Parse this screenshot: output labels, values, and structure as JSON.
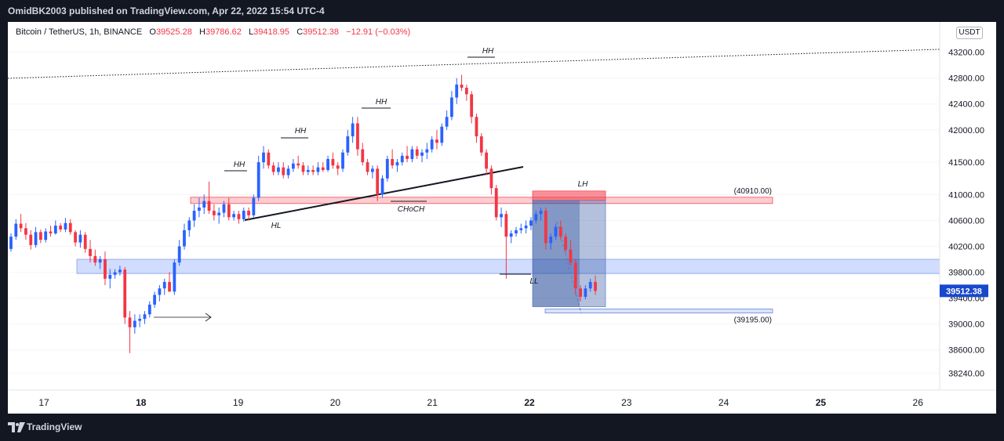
{
  "header": {
    "publisher": "OmidBK2003 published on TradingView.com, Apr 22, 2022 15:54 UTC-4"
  },
  "legend": {
    "symbol": "Bitcoin / TetherUS, 1h, BINANCE",
    "o_key": "O",
    "o_val": "39525.28",
    "h_key": "H",
    "h_val": "39786.62",
    "l_key": "L",
    "l_val": "39418.95",
    "c_key": "C",
    "c_val": "39512.38",
    "change": "−12.91 (−0.03%)"
  },
  "currency": "USDT",
  "footer": {
    "brand": "TradingView"
  },
  "colors": {
    "up": "#2962ff",
    "down": "#f23645",
    "background": "#ffffff",
    "frame": "#131722"
  },
  "chart_data": {
    "type": "candlestick",
    "symbol": "Bitcoin / TetherUS",
    "interval": "1h",
    "exchange": "BINANCE",
    "y_ticks": [
      43200,
      42800,
      42400,
      42000,
      41500,
      41000,
      40600,
      40200,
      39800,
      39400,
      39000,
      38600,
      38240
    ],
    "ylim": [
      38100,
      43450
    ],
    "x_ticks": [
      "17",
      "18",
      "19",
      "20",
      "21",
      "22",
      "23",
      "24",
      "25",
      "26"
    ],
    "last_price": "39512.38",
    "price_labels": [
      "(40910.00)",
      "(39195.00)"
    ],
    "annotations": [
      "HH",
      "HH",
      "HH",
      "HH",
      "HL",
      "CHoCH",
      "LH",
      "LL"
    ],
    "candles": [
      [
        40160,
        40400,
        40120,
        40350
      ],
      [
        40350,
        40620,
        40300,
        40550
      ],
      [
        40550,
        40700,
        40420,
        40480
      ],
      [
        40480,
        40560,
        40300,
        40380
      ],
      [
        40380,
        40450,
        40150,
        40220
      ],
      [
        40220,
        40500,
        40180,
        40420
      ],
      [
        40420,
        40460,
        40250,
        40300
      ],
      [
        40300,
        40480,
        40260,
        40430
      ],
      [
        40430,
        40520,
        40350,
        40400
      ],
      [
        40400,
        40600,
        40380,
        40520
      ],
      [
        40520,
        40560,
        40420,
        40460
      ],
      [
        40460,
        40640,
        40420,
        40560
      ],
      [
        40560,
        40620,
        40380,
        40420
      ],
      [
        40420,
        40450,
        40200,
        40260
      ],
      [
        40260,
        40450,
        40180,
        40380
      ],
      [
        40380,
        40420,
        40100,
        40160
      ],
      [
        40160,
        40300,
        39950,
        40050
      ],
      [
        40050,
        40150,
        39900,
        39950
      ],
      [
        39950,
        40050,
        39850,
        40000
      ],
      [
        40000,
        40120,
        39600,
        39700
      ],
      [
        39700,
        39850,
        39550,
        39760
      ],
      [
        39760,
        39850,
        39700,
        39800
      ],
      [
        39800,
        39900,
        39750,
        39840
      ],
      [
        39840,
        39880,
        39000,
        39100
      ],
      [
        39100,
        39200,
        38550,
        38950
      ],
      [
        38950,
        39150,
        38850,
        39050
      ],
      [
        39050,
        39150,
        38950,
        39080
      ],
      [
        39080,
        39200,
        39000,
        39150
      ],
      [
        39150,
        39350,
        39100,
        39300
      ],
      [
        39300,
        39500,
        39250,
        39450
      ],
      [
        39450,
        39600,
        39350,
        39550
      ],
      [
        39550,
        39700,
        39450,
        39650
      ],
      [
        39650,
        39800,
        39550,
        39500
      ],
      [
        39500,
        40000,
        39450,
        39950
      ],
      [
        39950,
        40300,
        39900,
        40200
      ],
      [
        40200,
        40550,
        40150,
        40450
      ],
      [
        40450,
        40650,
        40350,
        40600
      ],
      [
        40600,
        40850,
        40500,
        40750
      ],
      [
        40750,
        40950,
        40650,
        40800
      ],
      [
        40800,
        41000,
        40700,
        40900
      ],
      [
        40900,
        41200,
        40700,
        40750
      ],
      [
        40750,
        40850,
        40600,
        40680
      ],
      [
        40680,
        40800,
        40550,
        40720
      ],
      [
        40720,
        40900,
        40650,
        40850
      ],
      [
        40850,
        40950,
        40600,
        40650
      ],
      [
        40650,
        40750,
        40600,
        40700
      ],
      [
        40700,
        40750,
        40550,
        40620
      ],
      [
        40620,
        40800,
        40580,
        40750
      ],
      [
        40750,
        40800,
        40600,
        40680
      ],
      [
        40680,
        41000,
        40650,
        40950
      ],
      [
        40950,
        41600,
        40900,
        41500
      ],
      [
        41500,
        41750,
        41400,
        41650
      ],
      [
        41650,
        41700,
        41400,
        41450
      ],
      [
        41450,
        41500,
        41300,
        41350
      ],
      [
        41350,
        41500,
        41300,
        41420
      ],
      [
        41420,
        41500,
        41250,
        41300
      ],
      [
        41300,
        41450,
        41250,
        41400
      ],
      [
        41400,
        41550,
        41350,
        41480
      ],
      [
        41480,
        41600,
        41400,
        41450
      ],
      [
        41450,
        41500,
        41300,
        41350
      ],
      [
        41350,
        41450,
        41300,
        41380
      ],
      [
        41380,
        41450,
        41300,
        41350
      ],
      [
        41350,
        41500,
        41300,
        41420
      ],
      [
        41420,
        41500,
        41350,
        41380
      ],
      [
        41380,
        41600,
        41350,
        41550
      ],
      [
        41550,
        41650,
        41400,
        41450
      ],
      [
        41450,
        41500,
        41300,
        41400
      ],
      [
        41400,
        41700,
        41350,
        41650
      ],
      [
        41650,
        42000,
        41600,
        41900
      ],
      [
        41900,
        42200,
        41800,
        42100
      ],
      [
        42100,
        42200,
        41600,
        41700
      ],
      [
        41700,
        41800,
        41450,
        41500
      ],
      [
        41500,
        41550,
        41300,
        41350
      ],
      [
        41350,
        41450,
        41250,
        41400
      ],
      [
        41400,
        41450,
        40900,
        41000
      ],
      [
        41000,
        41300,
        40950,
        41250
      ],
      [
        41250,
        41600,
        41200,
        41550
      ],
      [
        41550,
        41700,
        41400,
        41450
      ],
      [
        41450,
        41550,
        41350,
        41500
      ],
      [
        41500,
        41650,
        41450,
        41600
      ],
      [
        41600,
        41750,
        41500,
        41550
      ],
      [
        41550,
        41750,
        41500,
        41700
      ],
      [
        41700,
        41750,
        41550,
        41600
      ],
      [
        41600,
        41700,
        41500,
        41650
      ],
      [
        41650,
        41800,
        41550,
        41700
      ],
      [
        41700,
        41900,
        41650,
        41850
      ],
      [
        41850,
        42000,
        41700,
        41800
      ],
      [
        41800,
        42100,
        41750,
        42050
      ],
      [
        42050,
        42300,
        42000,
        42200
      ],
      [
        42200,
        42600,
        42150,
        42500
      ],
      [
        42500,
        42800,
        42400,
        42700
      ],
      [
        42700,
        42850,
        42600,
        42650
      ],
      [
        42650,
        42700,
        42450,
        42550
      ],
      [
        42550,
        42600,
        42100,
        42200
      ],
      [
        42200,
        42250,
        41800,
        41900
      ],
      [
        41900,
        41950,
        41600,
        41650
      ],
      [
        41650,
        41700,
        41300,
        41400
      ],
      [
        41400,
        41450,
        41000,
        41100
      ],
      [
        41100,
        41150,
        40600,
        40650
      ],
      [
        40650,
        40800,
        40500,
        40700
      ],
      [
        40700,
        40750,
        39700,
        40350
      ],
      [
        40350,
        40450,
        40250,
        40400
      ],
      [
        40400,
        40500,
        40350,
        40450
      ],
      [
        40450,
        40550,
        40400,
        40480
      ],
      [
        40480,
        40600,
        40400,
        40520
      ],
      [
        40520,
        40650,
        40450,
        40600
      ],
      [
        40600,
        40750,
        40550,
        40700
      ],
      [
        40700,
        40800,
        40600,
        40750
      ],
      [
        40750,
        40800,
        40150,
        40250
      ],
      [
        40250,
        40400,
        40150,
        40350
      ],
      [
        40350,
        40550,
        40300,
        40500
      ],
      [
        40500,
        40600,
        40300,
        40350
      ],
      [
        40350,
        40400,
        40100,
        40150
      ],
      [
        40150,
        40300,
        39900,
        39950
      ],
      [
        39950,
        40000,
        39450,
        39550
      ],
      [
        39550,
        39600,
        39350,
        39420
      ],
      [
        39420,
        39600,
        39380,
        39550
      ],
      [
        39550,
        39700,
        39500,
        39650
      ],
      [
        39650,
        39750,
        39450,
        39512
      ]
    ]
  }
}
